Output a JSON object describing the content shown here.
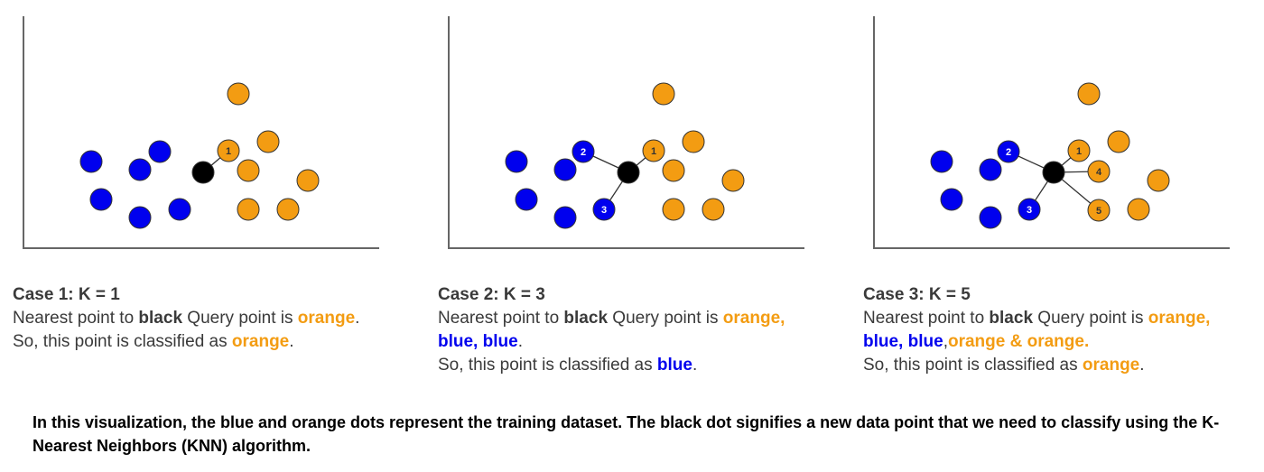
{
  "colors": {
    "blue": "#0000ee",
    "orange": "#f39c12",
    "query": "#000000",
    "axis": "#666666"
  },
  "panels": [
    {
      "title": "Case 1: K = 1",
      "line1": {
        "pre": "Nearest point to ",
        "bold": "black",
        "mid": " Query point is ",
        "val": "orange",
        "post": "."
      },
      "line2": {
        "pre": "So, this point is classified as ",
        "val": "orange",
        "post": "."
      },
      "neighbors": [
        {
          "label": "1",
          "color": "orange"
        }
      ]
    },
    {
      "title": "Case 2: K = 3",
      "line1": {
        "pre": "Nearest point to ",
        "bold": "black",
        "mid": " Query point is ",
        "val": "orange,",
        "post": ""
      },
      "line1b": {
        "val": "blue, blue",
        "post": "."
      },
      "line2": {
        "pre": "So, this point is classified as ",
        "val": "blue",
        "post": "."
      },
      "neighbors": [
        {
          "label": "1",
          "color": "orange"
        },
        {
          "label": "2",
          "color": "blue"
        },
        {
          "label": "3",
          "color": "blue"
        }
      ]
    },
    {
      "title": "Case 3: K = 5",
      "line1": {
        "pre": "Nearest point to ",
        "bold": "black",
        "mid": " Query point is ",
        "val": "orange,",
        "post": ""
      },
      "line1b": {
        "val": "blue, blue",
        "sep": ",",
        "val2": "orange & orange."
      },
      "line2": {
        "pre": "So, this point is classified as ",
        "val": "orange",
        "post": "."
      },
      "neighbors": [
        {
          "label": "1",
          "color": "orange"
        },
        {
          "label": "2",
          "color": "blue"
        },
        {
          "label": "3",
          "color": "blue"
        },
        {
          "label": "4",
          "color": "orange"
        },
        {
          "label": "5",
          "color": "orange"
        }
      ]
    }
  ],
  "footer": "In this visualization, the blue and orange dots represent the training dataset. The black dot signifies a new data point that we need to classify using the K-Nearest Neighbors (KNN) algorithm."
}
